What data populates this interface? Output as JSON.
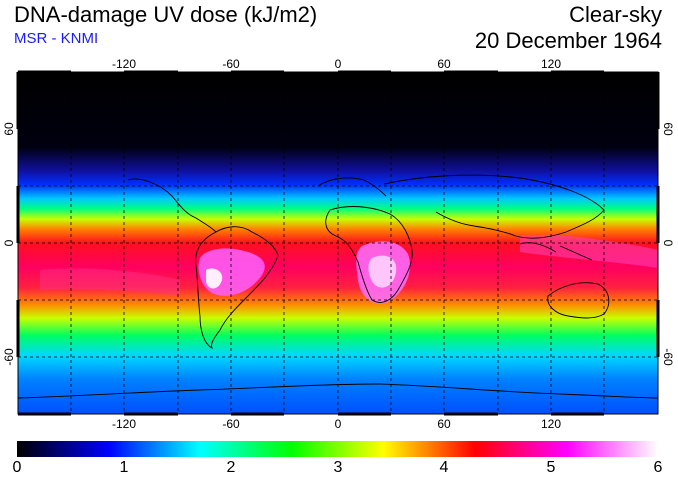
{
  "header": {
    "title": "DNA-damage UV dose (kJ/m2)",
    "source": "MSR - KNMI",
    "condition": "Clear-sky",
    "date": "20 December 1964"
  },
  "map": {
    "lon_ticks": [
      "-120",
      "-60",
      "0",
      "60",
      "120"
    ],
    "lat_ticks": [
      "60",
      "0",
      "-60"
    ]
  },
  "colorbar": {
    "labels": [
      "0",
      "1",
      "2",
      "3",
      "4",
      "5",
      "6"
    ],
    "min": 0,
    "max": 6,
    "stops": [
      "#000000",
      "#0000ff",
      "#00ffff",
      "#00ff00",
      "#ffff00",
      "#ff0000",
      "#ff00ff",
      "#ffffff"
    ]
  },
  "colors": {
    "source_label": "#1a1aff",
    "grid": "#000000"
  }
}
